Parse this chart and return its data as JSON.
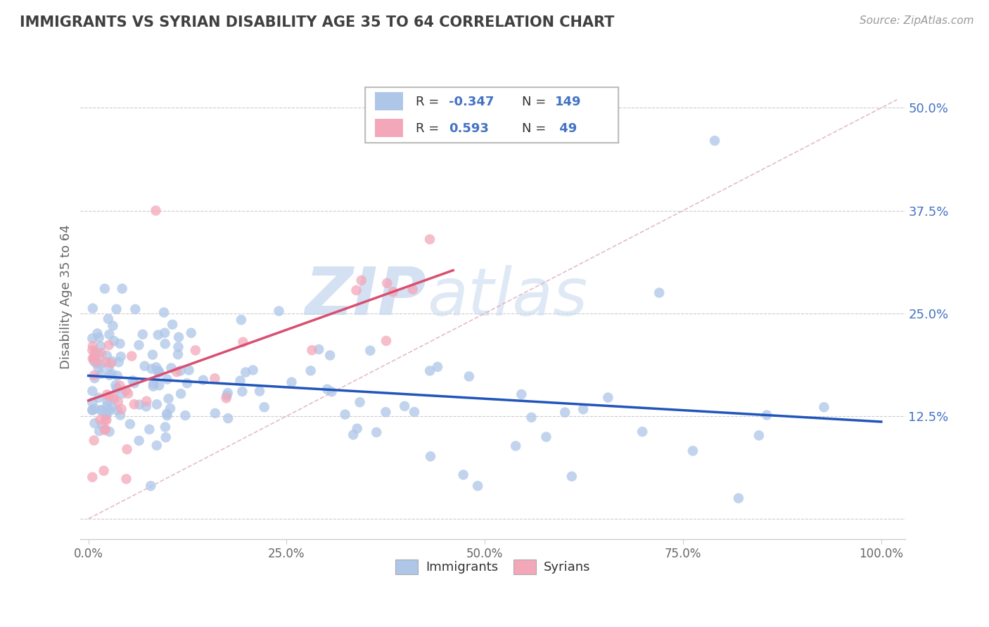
{
  "title": "IMMIGRANTS VS SYRIAN DISABILITY AGE 35 TO 64 CORRELATION CHART",
  "source": "Source: ZipAtlas.com",
  "ylabel": "Disability Age 35 to 64",
  "watermark_zip": "ZIP",
  "watermark_atlas": "atlas",
  "xlim": [
    -0.01,
    1.03
  ],
  "ylim": [
    -0.025,
    0.565
  ],
  "x_ticks": [
    0.0,
    0.25,
    0.5,
    0.75,
    1.0
  ],
  "x_tick_labels": [
    "0.0%",
    "25.0%",
    "50.0%",
    "75.0%",
    "100.0%"
  ],
  "y_ticks": [
    0.0,
    0.125,
    0.25,
    0.375,
    0.5
  ],
  "y_tick_labels": [
    "",
    "12.5%",
    "25.0%",
    "37.5%",
    "50.0%"
  ],
  "immigrants_R": -0.347,
  "immigrants_N": 149,
  "syrians_R": 0.593,
  "syrians_N": 49,
  "immigrants_color": "#aec6e8",
  "syrians_color": "#f4a7b9",
  "immigrants_line_color": "#2255bb",
  "syrians_line_color": "#d94f70",
  "ref_line_color": "#e0b0c0",
  "title_color": "#404040",
  "source_color": "#999999",
  "axis_color": "#cccccc",
  "grid_color": "#cccccc",
  "tick_color": "#666666",
  "right_tick_color": "#4472c4",
  "background_color": "#ffffff",
  "figsize": [
    14.06,
    8.92
  ],
  "dpi": 100,
  "legend_R_color": "#4472c4",
  "legend_N_color": "#4472c4",
  "legend_label_color": "#333333"
}
